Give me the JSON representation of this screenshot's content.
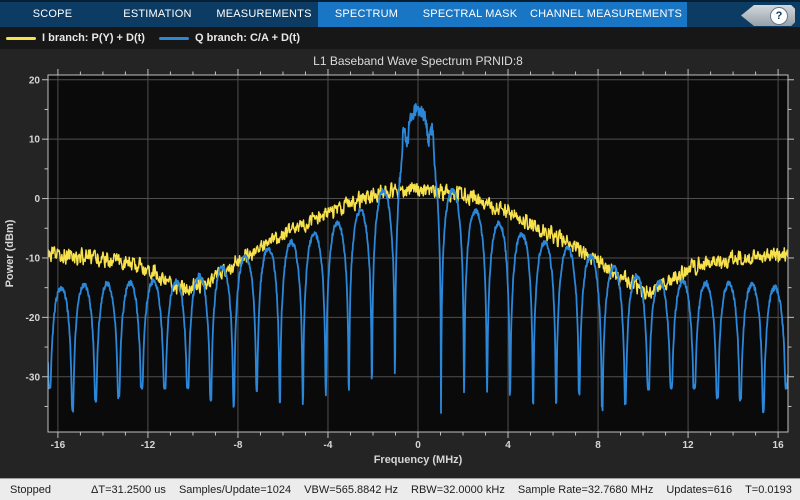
{
  "toolbar": {
    "tabs": [
      {
        "label": "SCOPE",
        "group": "dark"
      },
      {
        "label": "ESTIMATION",
        "group": "dark"
      },
      {
        "label": "MEASUREMENTS",
        "group": "dark"
      },
      {
        "label": "SPECTRUM",
        "group": "light"
      },
      {
        "label": "SPECTRAL MASK",
        "group": "light"
      },
      {
        "label": "CHANNEL MEASUREMENTS",
        "group": "light"
      }
    ],
    "help_label": "?",
    "colors": {
      "dark_bg": "#0c3c64",
      "light_bg": "#1976c5",
      "text": "#ffffff"
    }
  },
  "legend": {
    "items": [
      {
        "label": "I branch: P(Y) + D(t)",
        "color": "#f7e14d"
      },
      {
        "label": "Q branch: C/A + D(t)",
        "color": "#2c87d8"
      }
    ]
  },
  "chart_data": {
    "type": "line",
    "title": "L1 Baseband Wave Spectrum PRNID:8",
    "xlabel": "Frequency (MHz)",
    "ylabel": "Power (dBm)",
    "xlim": [
      -16.44,
      16.44
    ],
    "ylim": [
      -39.3,
      20.8
    ],
    "x_major_ticks": [
      -16,
      -12,
      -8,
      -4,
      0,
      4,
      8,
      12,
      16
    ],
    "x_minor_step": 1,
    "y_major_ticks": [
      20,
      10,
      0,
      -10,
      -20,
      -30
    ],
    "y_minor_step": 5,
    "grid": true,
    "legend_position": "top-left-bar",
    "colors": {
      "plot_bg": "#0a0a0a",
      "grid": "#4f4f4f",
      "frame": "#c0c0c0",
      "labels": "#d6d6d6",
      "title": "#dcdcdc"
    },
    "series": [
      {
        "name": "I branch: P(Y) + D(t)",
        "color": "#f7e14d",
        "style": "noisy_envelope",
        "noise_db": 1.6,
        "envelope_dbm": [
          [
            0,
            1.5
          ],
          [
            1,
            1.3
          ],
          [
            2,
            0.6
          ],
          [
            3,
            -0.8
          ],
          [
            4,
            -2.4
          ],
          [
            5,
            -4.2
          ],
          [
            6,
            -6.2
          ],
          [
            7,
            -8.3
          ],
          [
            8,
            -10.6
          ],
          [
            9,
            -13.2
          ],
          [
            10.23,
            -15.6
          ],
          [
            11,
            -14.3
          ],
          [
            12,
            -11.8
          ],
          [
            13,
            -10.8
          ],
          [
            14,
            -10.2
          ],
          [
            15,
            -9.8
          ],
          [
            16.44,
            -9.5
          ]
        ]
      },
      {
        "name": "Q branch: C/A + D(t)",
        "color": "#2c87d8",
        "style": "sinc_lobes",
        "chip_rate_mhz": 1.023,
        "peak_dbm": 15,
        "noise_db": 0.45,
        "null_floor_dbm": [
          -31,
          -36
        ],
        "sidelobe_envelope_dbm": [
          [
            0,
            15
          ],
          [
            1.53,
            1.3
          ],
          [
            2.56,
            -1.8
          ],
          [
            3.68,
            -4.2
          ],
          [
            4.7,
            -6.2
          ],
          [
            5.73,
            -7.8
          ],
          [
            6.85,
            -9.2
          ],
          [
            7.88,
            -10.3
          ],
          [
            8.9,
            -11.5
          ],
          [
            9.92,
            -12.8
          ],
          [
            10.95,
            -13.8
          ],
          [
            12.07,
            -13.5
          ],
          [
            13.09,
            -14.0
          ],
          [
            14.12,
            -14.3
          ],
          [
            15.14,
            -14.6
          ],
          [
            16.44,
            -15.0
          ]
        ]
      }
    ]
  },
  "status_bar": {
    "state": "Stopped",
    "items": [
      "ΔT=31.2500 us",
      "Samples/Update=1024",
      "VBW=565.8842 Hz",
      "RBW=32.0000 kHz",
      "Sample Rate=32.7680 MHz",
      "Updates=616",
      "T=0.0193"
    ]
  }
}
